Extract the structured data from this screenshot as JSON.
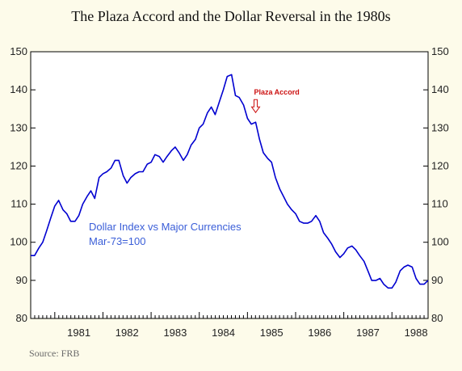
{
  "chart_data": {
    "type": "line",
    "title": "The Plaza Accord and the Dollar Reversal in the 1980s",
    "source": "Source:  FRB",
    "series_label_lines": [
      "Dollar Index vs Major Currencies",
      "Mar-73=100"
    ],
    "annotation": {
      "text": "Plaza Accord",
      "x": 1985.17,
      "y": 131.5
    },
    "xlim": [
      1980.5,
      1988.75
    ],
    "ylim": [
      80,
      150
    ],
    "x_tick_labels": [
      "1981",
      "1982",
      "1983",
      "1984",
      "1985",
      "1986",
      "1987",
      "1988"
    ],
    "y_ticks": [
      80,
      90,
      100,
      110,
      120,
      130,
      140,
      150
    ],
    "grid": false,
    "colors": {
      "line": "#0000d0",
      "annotation": "#cc1111",
      "label": "#3a5ed8",
      "background": "#fdfbea"
    },
    "series": [
      {
        "x": [
          1980.5,
          1980.58,
          1980.67,
          1980.75,
          1980.83,
          1980.92,
          1981.0,
          1981.08,
          1981.17,
          1981.25,
          1981.33,
          1981.42,
          1981.5,
          1981.58,
          1981.67,
          1981.75,
          1981.83,
          1981.92,
          1982.0,
          1982.08,
          1982.17,
          1982.25,
          1982.33,
          1982.42,
          1982.5,
          1982.58,
          1982.67,
          1982.75,
          1982.83,
          1982.92,
          1983.0,
          1983.08,
          1983.17,
          1983.25,
          1983.33,
          1983.42,
          1983.5,
          1983.58,
          1983.67,
          1983.75,
          1983.83,
          1983.92,
          1984.0,
          1984.08,
          1984.17,
          1984.25,
          1984.33,
          1984.42,
          1984.5,
          1984.58,
          1984.67,
          1984.75,
          1984.83,
          1984.92,
          1985.0,
          1985.08,
          1985.17,
          1985.25,
          1985.33,
          1985.42,
          1985.5,
          1985.58,
          1985.67,
          1985.75,
          1985.83,
          1985.92,
          1986.0,
          1986.08,
          1986.17,
          1986.25,
          1986.33,
          1986.42,
          1986.5,
          1986.58,
          1986.67,
          1986.75,
          1986.83,
          1986.92,
          1987.0,
          1987.08,
          1987.17,
          1987.25,
          1987.33,
          1987.42,
          1987.5,
          1987.58,
          1987.67,
          1987.75,
          1987.83,
          1987.92,
          1988.0,
          1988.08,
          1988.17,
          1988.25,
          1988.33,
          1988.42,
          1988.5,
          1988.58,
          1988.67,
          1988.75
        ],
        "y": [
          96.5,
          96.5,
          98.5,
          100,
          103,
          106.5,
          109.5,
          111,
          108.5,
          107.5,
          105.5,
          105.5,
          107,
          110,
          112,
          113.5,
          111.5,
          117,
          118,
          118.5,
          119.5,
          121.5,
          121.5,
          117.5,
          115.5,
          117,
          118,
          118.5,
          118.5,
          120.5,
          121,
          123,
          122.5,
          121,
          122.5,
          124,
          125,
          123.5,
          121.5,
          123,
          125.5,
          127,
          130,
          131,
          134,
          135.5,
          133.5,
          137,
          140,
          143.5,
          144,
          138.5,
          138,
          136,
          132.5,
          131,
          131.5,
          127,
          123.5,
          122,
          121,
          117,
          114,
          112,
          110,
          108.5,
          107.5,
          105.5,
          105,
          105,
          105.5,
          107,
          105.5,
          102.5,
          101,
          99.5,
          97.5,
          96,
          97,
          98.5,
          99,
          98,
          96.5,
          95,
          92.5,
          90,
          90,
          90.5,
          89,
          88,
          88,
          89.5,
          92.5,
          93.5,
          94,
          93.5,
          90.5,
          89,
          89,
          90
        ]
      }
    ]
  }
}
